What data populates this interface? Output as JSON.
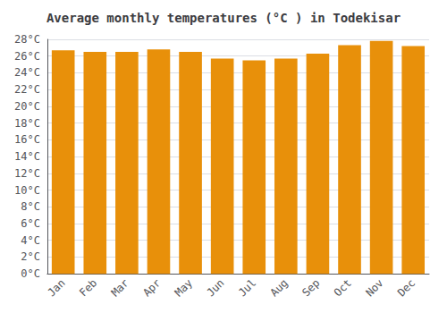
{
  "chart_data": {
    "type": "bar",
    "title": "Average monthly temperatures (°C ) in Todekisar",
    "categories": [
      "Jan",
      "Feb",
      "Mar",
      "Apr",
      "May",
      "Jun",
      "Jul",
      "Aug",
      "Sep",
      "Oct",
      "Nov",
      "Dec"
    ],
    "values": [
      26.7,
      26.5,
      26.5,
      26.8,
      26.5,
      25.7,
      25.5,
      25.7,
      26.3,
      27.3,
      27.8,
      27.2
    ],
    "color": "#E8900A",
    "ylim": [
      0,
      28
    ],
    "yticks": [
      {
        "value": 0,
        "label": "0°C"
      },
      {
        "value": 2,
        "label": "2°C"
      },
      {
        "value": 4,
        "label": "4°C"
      },
      {
        "value": 6,
        "label": "6°C"
      },
      {
        "value": 8,
        "label": "8°C"
      },
      {
        "value": 10,
        "label": "10°C"
      },
      {
        "value": 12,
        "label": "12°C"
      },
      {
        "value": 14,
        "label": "14°C"
      },
      {
        "value": 16,
        "label": "16°C"
      },
      {
        "value": 18,
        "label": "18°C"
      },
      {
        "value": 20,
        "label": "20°C"
      },
      {
        "value": 22,
        "label": "22°C"
      },
      {
        "value": 24,
        "label": "24°C"
      },
      {
        "value": 26,
        "label": "26°C"
      },
      {
        "value": 28,
        "label": "28°C"
      }
    ],
    "grid": true
  }
}
